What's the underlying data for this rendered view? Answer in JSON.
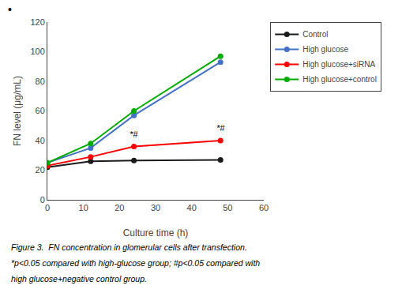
{
  "chart_data": {
    "type": "line",
    "x": [
      0,
      12,
      24,
      48
    ],
    "series": [
      {
        "name": "Control",
        "color": "#1a1a1a",
        "values": [
          22,
          26,
          26.5,
          27
        ],
        "marker": "circle",
        "line_style": "solid"
      },
      {
        "name": "High glucose",
        "color": "#4472c4",
        "values": [
          25,
          35,
          57,
          93
        ],
        "marker": "circle",
        "line_style": "solid"
      },
      {
        "name": "High glucose+siRNA",
        "color": "#ff0000",
        "values": [
          23,
          29,
          36,
          40
        ],
        "marker": "circle",
        "line_style": "solid"
      },
      {
        "name": "High glucose+control",
        "color": "#00aa00",
        "values": [
          25,
          38,
          60,
          97
        ],
        "marker": "circle",
        "line_style": "solid"
      }
    ],
    "xlabel": "Culture time (h)",
    "ylabel": "FN level (μg/mL)",
    "xlim": [
      0,
      60
    ],
    "ylim": [
      0,
      120
    ],
    "xticks": [
      0,
      10,
      20,
      30,
      40,
      50,
      60
    ],
    "yticks": [
      0,
      20,
      40,
      60,
      80,
      100,
      120
    ],
    "annotations": [
      {
        "text": "*#",
        "x": 24,
        "y": 39
      },
      {
        "text": "*#",
        "x": 48,
        "y": 43
      }
    ],
    "caption": [
      "Figure 3.  FN concentration in glomerular cells after transfection.",
      "*p<0.05 compared with high-glucose group; #p<0.05 compared with",
      "high glucose+negative control group."
    ],
    "bullet": "•",
    "grid": false,
    "legend": "right"
  }
}
